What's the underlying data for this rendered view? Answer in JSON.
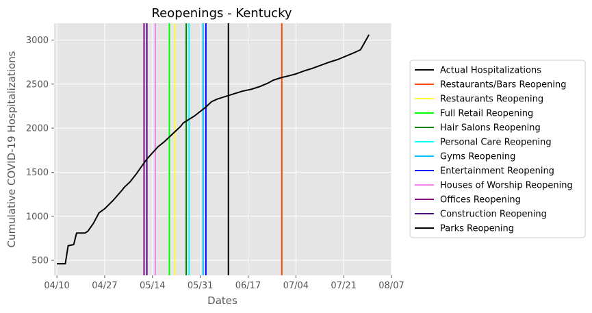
{
  "chart_data": {
    "type": "line",
    "title": "Reopenings - Kentucky",
    "xlabel": "Dates",
    "ylabel": "Cumulative COVID-19 Hospitalizations",
    "xlim": [
      "2020-04-09",
      "2020-08-07"
    ],
    "ylim": [
      330,
      3190
    ],
    "x_ticks": [
      {
        "date": "2020-04-10",
        "label": "04/10"
      },
      {
        "date": "2020-04-27",
        "label": "04/27"
      },
      {
        "date": "2020-05-14",
        "label": "05/14"
      },
      {
        "date": "2020-05-31",
        "label": "05/31"
      },
      {
        "date": "2020-06-17",
        "label": "06/17"
      },
      {
        "date": "2020-07-04",
        "label": "07/04"
      },
      {
        "date": "2020-07-21",
        "label": "07/21"
      },
      {
        "date": "2020-08-07",
        "label": "08/07"
      }
    ],
    "y_ticks": [
      500,
      1000,
      1500,
      2000,
      2500,
      3000
    ],
    "grid": true,
    "legend_position": "right",
    "series": [
      {
        "name": "Actual Hospitalizations",
        "color": "#000000",
        "points": [
          [
            "2020-04-10",
            461
          ],
          [
            "2020-04-13",
            461
          ],
          [
            "2020-04-14",
            665
          ],
          [
            "2020-04-16",
            680
          ],
          [
            "2020-04-17",
            810
          ],
          [
            "2020-04-20",
            810
          ],
          [
            "2020-04-21",
            830
          ],
          [
            "2020-04-23",
            920
          ],
          [
            "2020-04-25",
            1040
          ],
          [
            "2020-04-27",
            1085
          ],
          [
            "2020-04-30",
            1180
          ],
          [
            "2020-05-03",
            1290
          ],
          [
            "2020-05-04",
            1330
          ],
          [
            "2020-05-06",
            1390
          ],
          [
            "2020-05-08",
            1470
          ],
          [
            "2020-05-10",
            1560
          ],
          [
            "2020-05-12",
            1650
          ],
          [
            "2020-05-14",
            1720
          ],
          [
            "2020-05-16",
            1790
          ],
          [
            "2020-05-18",
            1840
          ],
          [
            "2020-05-20",
            1900
          ],
          [
            "2020-05-22",
            1960
          ],
          [
            "2020-05-24",
            2020
          ],
          [
            "2020-05-25",
            2060
          ],
          [
            "2020-05-27",
            2100
          ],
          [
            "2020-05-29",
            2140
          ],
          [
            "2020-05-31",
            2190
          ],
          [
            "2020-06-02",
            2240
          ],
          [
            "2020-06-04",
            2300
          ],
          [
            "2020-06-06",
            2330
          ],
          [
            "2020-06-09",
            2360
          ],
          [
            "2020-06-12",
            2390
          ],
          [
            "2020-06-15",
            2420
          ],
          [
            "2020-06-18",
            2440
          ],
          [
            "2020-06-21",
            2470
          ],
          [
            "2020-06-24",
            2510
          ],
          [
            "2020-06-26",
            2545
          ],
          [
            "2020-06-29",
            2575
          ],
          [
            "2020-07-01",
            2590
          ],
          [
            "2020-07-04",
            2615
          ],
          [
            "2020-07-07",
            2650
          ],
          [
            "2020-07-10",
            2680
          ],
          [
            "2020-07-13",
            2715
          ],
          [
            "2020-07-16",
            2750
          ],
          [
            "2020-07-19",
            2780
          ],
          [
            "2020-07-22",
            2820
          ],
          [
            "2020-07-25",
            2860
          ],
          [
            "2020-07-27",
            2890
          ],
          [
            "2020-07-30",
            3060
          ]
        ]
      }
    ],
    "reopenings": [
      {
        "name": "Restaurants/Bars Reopening",
        "date": "2020-06-29",
        "color": "#ff4500"
      },
      {
        "name": "Restaurants Reopening",
        "date": "2020-05-22",
        "color": "#ffff33"
      },
      {
        "name": "Full Retail Reopening",
        "date": "2020-05-20",
        "color": "#00ff00"
      },
      {
        "name": "Hair Salons Reopening",
        "date": "2020-05-26",
        "color": "#008000"
      },
      {
        "name": "Personal Care Reopening",
        "date": "2020-05-27",
        "color": "#00ffff"
      },
      {
        "name": "Gyms Reopening",
        "date": "2020-06-01",
        "color": "#00bfff"
      },
      {
        "name": "Entertainment Reopening",
        "date": "2020-06-02",
        "color": "#0000ff"
      },
      {
        "name": "Houses of Worship Reopening",
        "date": "2020-05-15",
        "color": "#ee82ee"
      },
      {
        "name": "Offices Reopening",
        "date": "2020-05-11",
        "color": "#800080"
      },
      {
        "name": "Construction Reopening",
        "date": "2020-05-12",
        "color": "#4b0082"
      },
      {
        "name": "Parks Reopening",
        "date": "2020-06-10",
        "color": "#000000"
      }
    ]
  }
}
